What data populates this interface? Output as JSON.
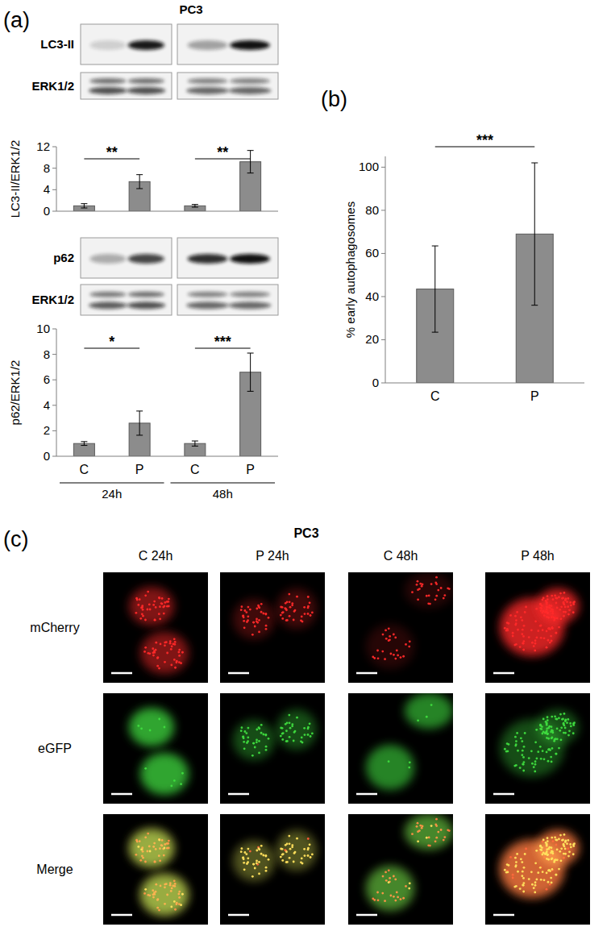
{
  "figure": {
    "panels": [
      "(a)",
      "(b)",
      "(c)"
    ],
    "blot": {
      "title": "PC3",
      "rows": [
        "LC3-II",
        "ERK1/2",
        "p62",
        "ERK1/2"
      ]
    },
    "micrograph": {
      "title": "PC3",
      "columns": [
        "C 24h",
        "P 24h",
        "C 48h",
        "P 48h"
      ],
      "rows": [
        "mCherry",
        "eGFP",
        "Merge"
      ]
    }
  },
  "chart_data": [
    {
      "type": "bar",
      "ylabel": "LC3-II/ERK1/2",
      "categories": [
        null,
        null,
        null,
        null
      ],
      "values": [
        1.0,
        5.5,
        1.0,
        9.2
      ],
      "errors": [
        0.4,
        1.3,
        0.25,
        2.1
      ],
      "color": "#8c8c8c",
      "ylim": [
        0,
        12
      ],
      "yticks": [
        0,
        4,
        8,
        12
      ],
      "grid": false,
      "annotations": [
        {
          "text": "**",
          "from": 0,
          "to": 1
        },
        {
          "text": "**",
          "from": 2,
          "to": 3
        }
      ]
    },
    {
      "type": "bar",
      "ylabel": "p62/ERK1/2",
      "categories": [
        "C",
        "P",
        "C",
        "P"
      ],
      "groups": [
        "24h",
        "48h"
      ],
      "values": [
        1.0,
        2.6,
        1.0,
        6.6
      ],
      "errors": [
        0.15,
        0.95,
        0.2,
        1.5
      ],
      "color": "#8c8c8c",
      "ylim": [
        0,
        10
      ],
      "yticks": [
        0,
        2,
        4,
        6,
        8,
        10
      ],
      "grid": false,
      "annotations": [
        {
          "text": "*",
          "from": 0,
          "to": 1
        },
        {
          "text": "***",
          "from": 2,
          "to": 3
        }
      ]
    },
    {
      "type": "bar",
      "ylabel": "% early autophagosomes",
      "categories": [
        "C",
        "P"
      ],
      "values": [
        43.5,
        69
      ],
      "errors": [
        20,
        33
      ],
      "color": "#8c8c8c",
      "ylim": [
        0,
        105
      ],
      "yticks": [
        0,
        20,
        40,
        60,
        80,
        100
      ],
      "grid": false,
      "annotations": [
        {
          "text": "***",
          "from": 0,
          "to": 1
        }
      ]
    }
  ]
}
